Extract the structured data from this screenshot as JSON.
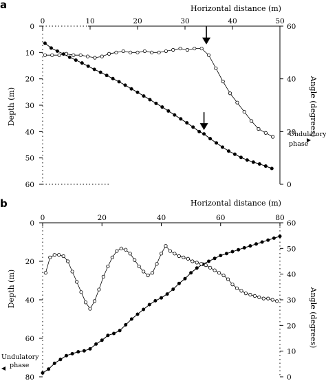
{
  "chart_data": [
    {
      "panel_label": "a",
      "type": "line",
      "title": "",
      "xlabel": "Horizontal distance (m)",
      "ylabel": "Depth (m)",
      "y2label": "Angle (degrees)",
      "xlim": [
        0,
        50
      ],
      "ylim": [
        60,
        0
      ],
      "y2lim": [
        0,
        60
      ],
      "xticks": [
        "0",
        "10",
        "20",
        "30",
        "40",
        "50"
      ],
      "yticks": [
        "0",
        "10",
        "20",
        "30",
        "40",
        "50",
        "60"
      ],
      "y2ticks": [
        "0",
        "20",
        "40",
        "60"
      ],
      "grid": false,
      "legend": "none",
      "series": [
        {
          "marker": "filled-circle",
          "axis": "left",
          "x": [
            0.5,
            1.8,
            3.1,
            4.4,
            5.7,
            7.0,
            8.3,
            9.6,
            10.9,
            12.2,
            13.5,
            14.8,
            16.1,
            17.4,
            18.7,
            20.0,
            21.3,
            22.6,
            23.9,
            25.2,
            26.5,
            27.8,
            29.1,
            30.4,
            31.7,
            33.0,
            34.0,
            35.3,
            36.6,
            37.9,
            39.2,
            40.5,
            41.8,
            43.1,
            44.4,
            45.7,
            47.0,
            48.3
          ],
          "y": [
            6.5,
            8.3,
            9.5,
            10.6,
            11.8,
            12.9,
            14.0,
            15.2,
            16.4,
            17.5,
            18.7,
            19.9,
            21.1,
            22.4,
            23.8,
            25.1,
            26.5,
            27.9,
            29.3,
            30.7,
            32.2,
            33.7,
            35.2,
            36.7,
            38.3,
            40.0,
            40.9,
            42.7,
            44.3,
            45.9,
            47.4,
            48.6,
            49.8,
            50.8,
            51.6,
            52.3,
            53.1,
            54.0
          ]
        },
        {
          "marker": "open-circle",
          "axis": "right",
          "x": [
            0.5,
            2.0,
            3.5,
            5.0,
            6.5,
            8.0,
            9.5,
            11.0,
            12.5,
            14.0,
            15.5,
            17.0,
            18.5,
            20.0,
            21.5,
            23.0,
            24.5,
            26.0,
            27.5,
            29.0,
            30.5,
            32.0,
            33.5,
            35.0,
            36.5,
            38.0,
            39.5,
            41.0,
            42.5,
            44.0,
            45.5,
            47.0,
            48.5
          ],
          "y": [
            49.0,
            49.0,
            49.0,
            49.5,
            49.0,
            49.0,
            48.5,
            48.0,
            48.5,
            49.5,
            50.0,
            50.5,
            50.0,
            50.0,
            50.5,
            50.0,
            50.0,
            50.5,
            51.0,
            51.5,
            51.0,
            51.5,
            51.5,
            49.0,
            44.0,
            39.0,
            34.5,
            31.0,
            27.5,
            24.0,
            21.0,
            19.5,
            18.0
          ]
        }
      ],
      "annotations": [
        {
          "type": "arrow",
          "x": 34.5,
          "axis": "right",
          "y": 51.5
        },
        {
          "type": "arrow",
          "x": 34.0,
          "axis": "left",
          "y": 41.0
        },
        {
          "type": "text",
          "text_lines": [
            "Undulatory",
            "phase"
          ],
          "axis": "left",
          "y": 51.0
        }
      ]
    },
    {
      "panel_label": "b",
      "type": "line",
      "title": "",
      "xlabel": "Horizontal distance (m)",
      "ylabel": "Depth (m)",
      "y2label": "Angle (degrees)",
      "xlim": [
        0,
        80
      ],
      "ylim": [
        80,
        0
      ],
      "y2lim": [
        0,
        60
      ],
      "xticks": [
        "0",
        "20",
        "40",
        "60",
        "80"
      ],
      "yticks": [
        "0",
        "20",
        "40",
        "60",
        "80"
      ],
      "y2ticks": [
        "0",
        "10",
        "20",
        "30",
        "40",
        "50",
        "60"
      ],
      "grid": false,
      "legend": "none",
      "series": [
        {
          "marker": "filled-circle",
          "axis": "left",
          "x": [
            0,
            2,
            4,
            6,
            8,
            10,
            12,
            14,
            16,
            18,
            20,
            22,
            24,
            26,
            28,
            30,
            32,
            34,
            36,
            38,
            40,
            42,
            44,
            46,
            48,
            50,
            52,
            54,
            56,
            58,
            60,
            62,
            64,
            66,
            68,
            70,
            72,
            74,
            76,
            78,
            80
          ],
          "y": [
            78.0,
            76.0,
            73.0,
            71.0,
            69.0,
            68.0,
            67.0,
            66.5,
            65.5,
            63.0,
            61.0,
            58.5,
            57.5,
            56.0,
            53.0,
            50.0,
            47.5,
            45.0,
            42.5,
            40.5,
            39.0,
            37.0,
            34.5,
            31.5,
            29.0,
            26.0,
            23.5,
            21.5,
            20.0,
            18.5,
            17.0,
            16.0,
            15.0,
            14.0,
            13.0,
            12.0,
            11.0,
            10.0,
            9.0,
            8.0,
            7.0
          ]
        },
        {
          "marker": "open-circle",
          "axis": "right",
          "x": [
            1,
            2.5,
            4,
            5.5,
            7,
            8.5,
            10,
            11.5,
            13,
            14.5,
            16,
            17.5,
            19,
            20.5,
            22,
            23.5,
            25,
            26.5,
            28,
            29.5,
            31,
            32.5,
            34,
            35.5,
            37,
            38.5,
            40,
            41.5,
            43,
            44.5,
            46,
            47.5,
            49,
            50.5,
            52,
            53.5,
            55,
            56.5,
            58,
            59.5,
            61,
            62.5,
            64,
            65.5,
            67,
            68.5,
            70,
            71.5,
            73,
            74.5,
            76,
            77.5,
            79
          ],
          "y": [
            40.5,
            46.5,
            47.5,
            47.5,
            47.0,
            45.0,
            41.0,
            37.0,
            33.0,
            29.0,
            26.5,
            29.5,
            34.0,
            39.0,
            43.0,
            46.5,
            49.0,
            50.0,
            49.5,
            48.0,
            45.5,
            43.0,
            41.0,
            39.5,
            40.5,
            44.0,
            48.0,
            51.0,
            49.0,
            48.0,
            47.0,
            46.5,
            46.0,
            45.0,
            44.5,
            44.0,
            43.5,
            42.5,
            41.5,
            40.5,
            39.5,
            38.0,
            36.0,
            34.5,
            33.5,
            32.5,
            32.0,
            31.5,
            31.0,
            30.5,
            30.5,
            30.0,
            29.5
          ]
        }
      ],
      "annotations": [
        {
          "type": "text",
          "text_lines": [
            "Undulatory",
            "phase"
          ],
          "axis": "left",
          "y": 78.0
        }
      ]
    }
  ]
}
